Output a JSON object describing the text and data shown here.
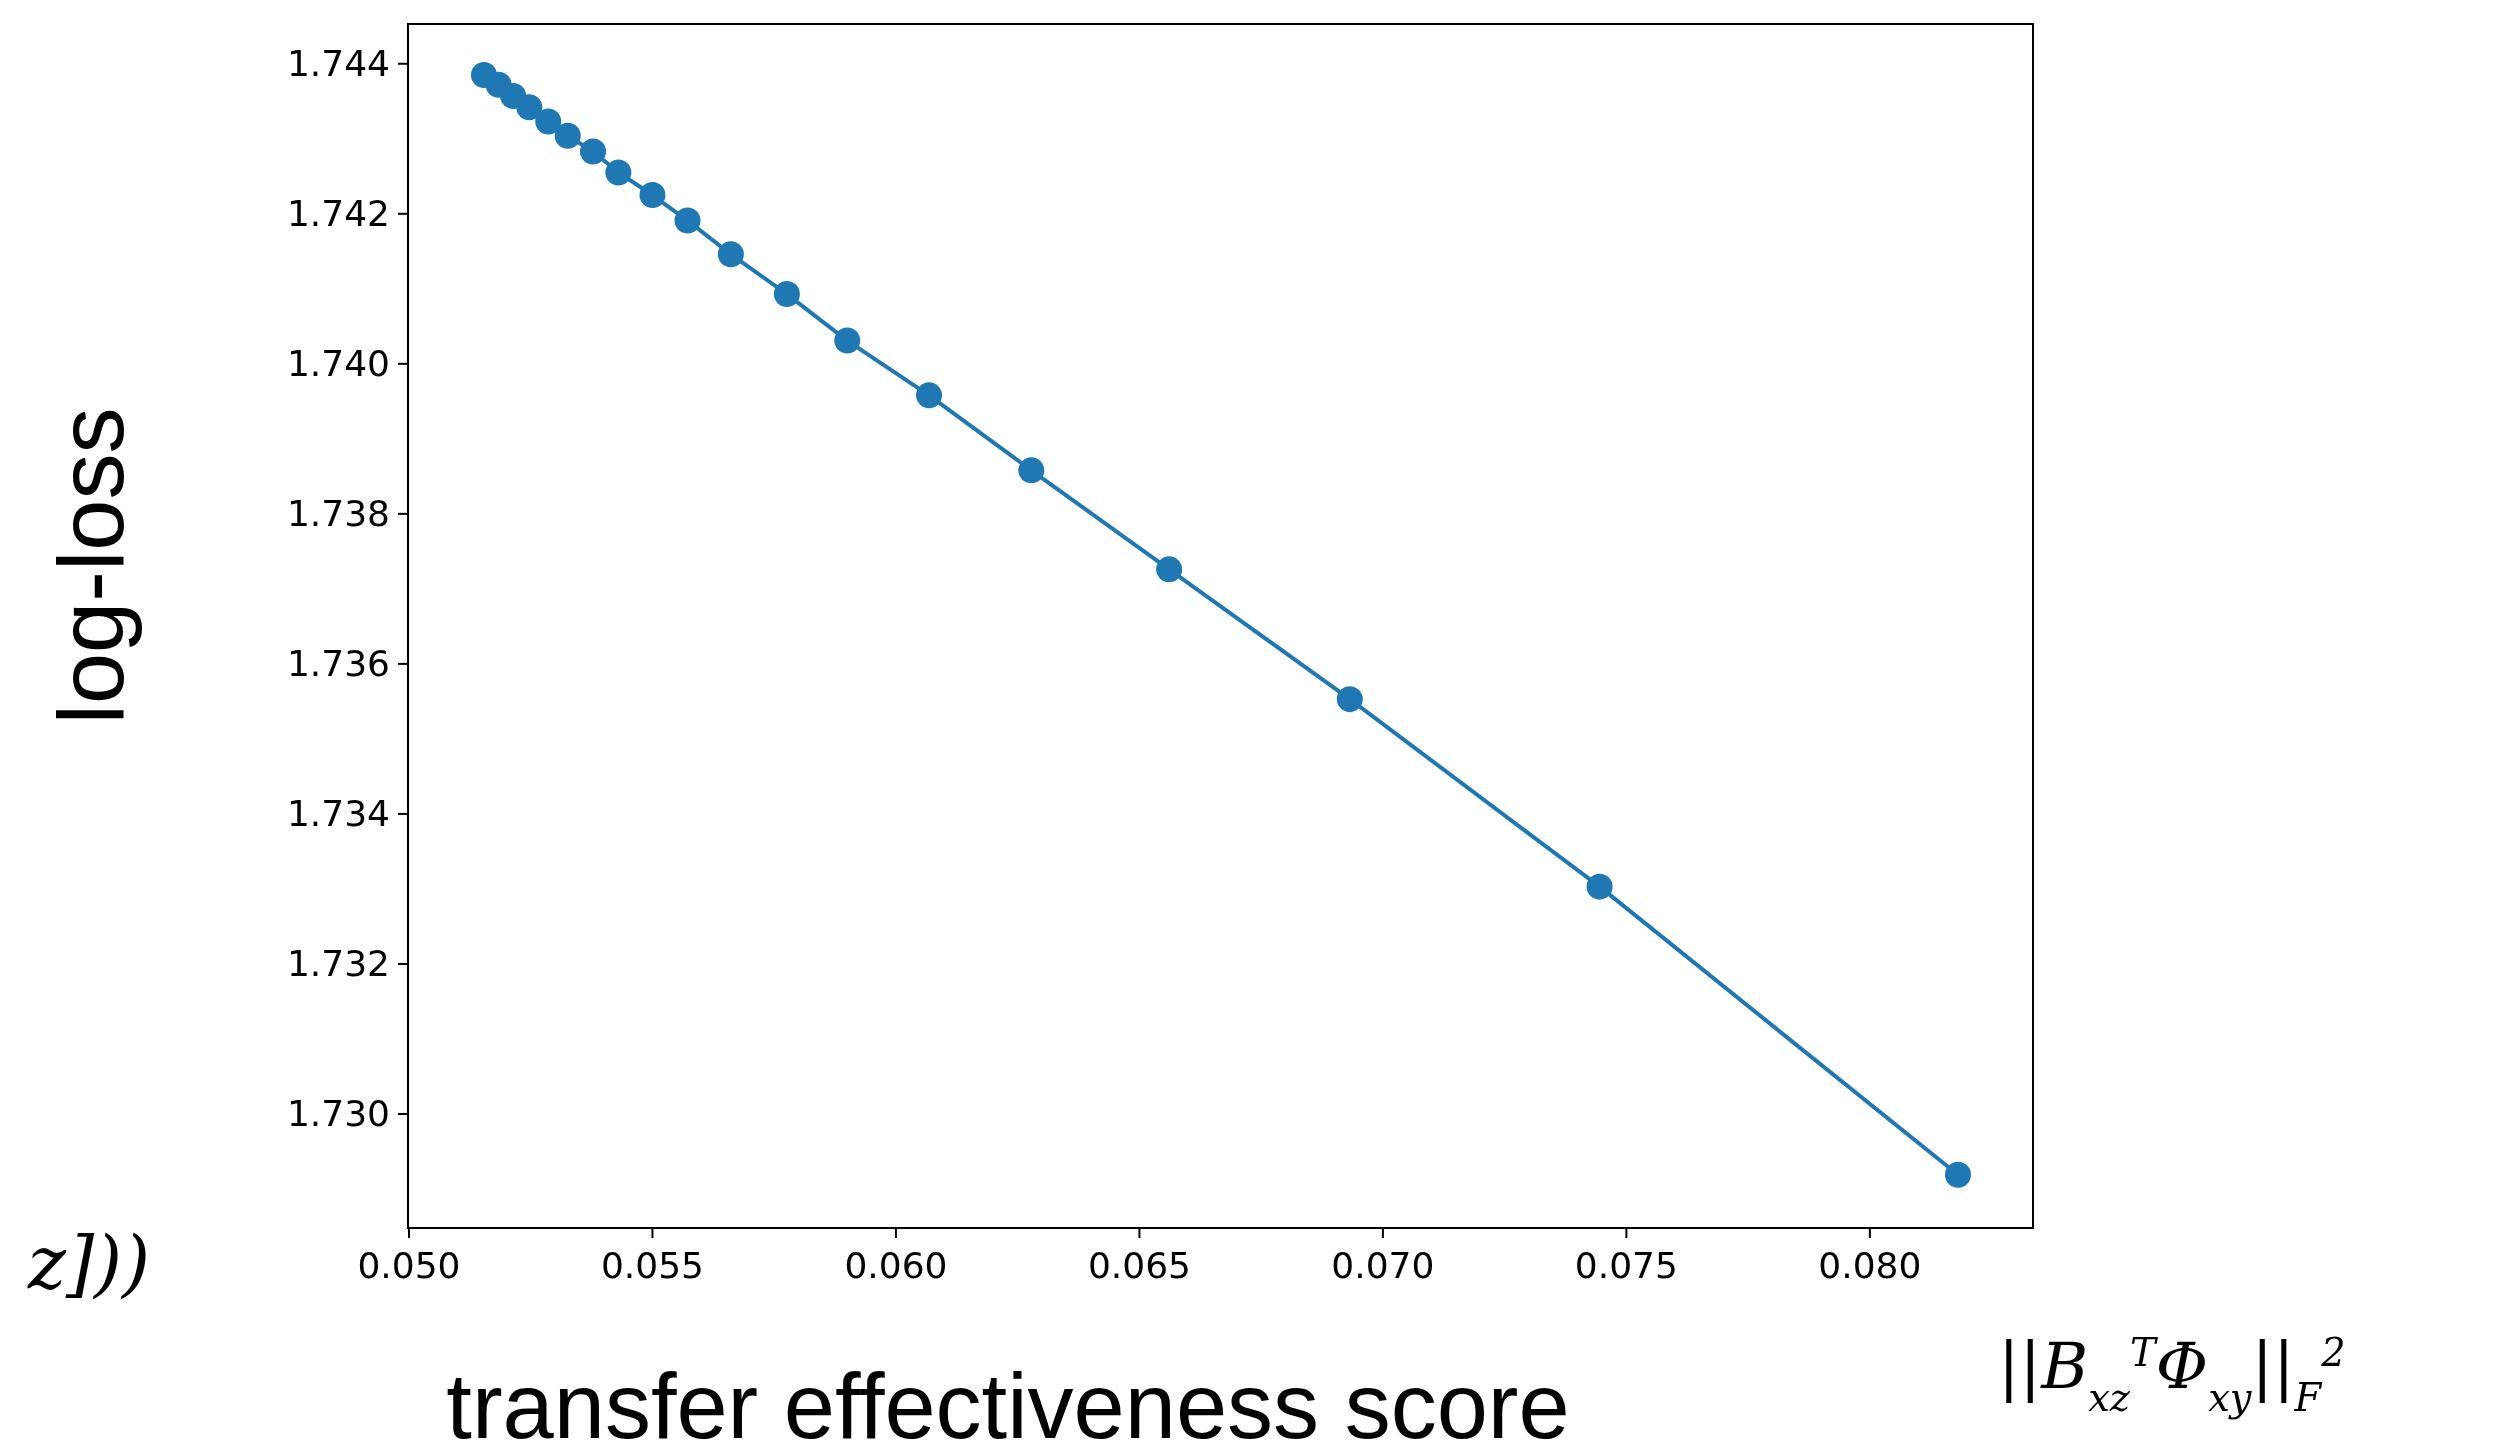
{
  "chart_data": {
    "type": "line",
    "xlabel": "transfer effectiveness score",
    "ylabel": "log-loss",
    "x": [
      0.05154,
      0.05184,
      0.05214,
      0.05247,
      0.05286,
      0.05326,
      0.05378,
      0.0543,
      0.055,
      0.05572,
      0.05661,
      0.05776,
      0.059,
      0.06068,
      0.06278,
      0.06561,
      0.06932,
      0.07445,
      0.08181
    ],
    "series": [
      {
        "color": "#1f77b4",
        "values": [
          1.74385,
          1.74372,
          1.74357,
          1.74342,
          1.74323,
          1.74304,
          1.74283,
          1.74255,
          1.74225,
          1.74191,
          1.74146,
          1.74093,
          1.74031,
          1.73958,
          1.73858,
          1.73726,
          1.73553,
          1.73303,
          1.72919
        ]
      }
    ],
    "xlim": [
      0.04998,
      0.08335
    ],
    "ylim": [
      1.72848,
      1.74453
    ],
    "xticks": [
      {
        "value": 0.05,
        "label": "0.050"
      },
      {
        "value": 0.055,
        "label": "0.055"
      },
      {
        "value": 0.06,
        "label": "0.060"
      },
      {
        "value": 0.065,
        "label": "0.065"
      },
      {
        "value": 0.07,
        "label": "0.070"
      },
      {
        "value": 0.075,
        "label": "0.075"
      },
      {
        "value": 0.08,
        "label": "0.080"
      }
    ],
    "yticks": [
      {
        "value": 1.73,
        "label": "1.730"
      },
      1.732,
      1.734,
      1.736,
      1.738,
      {
        "value": 1.74,
        "label": "1.740"
      },
      1.742,
      1.744
    ],
    "marker": "circle",
    "line_style": "solid",
    "grid": false,
    "annotations": [
      "z]))",
      "||B$_{xz}$$^{T}$Φ$_{xy}$||$_{F}$$^{2}$"
    ]
  }
}
